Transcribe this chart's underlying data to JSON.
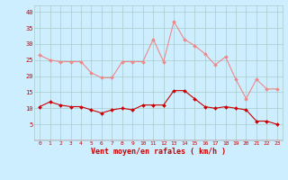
{
  "hours": [
    0,
    1,
    2,
    3,
    4,
    5,
    6,
    7,
    8,
    9,
    10,
    11,
    12,
    13,
    14,
    15,
    16,
    17,
    18,
    19,
    20,
    21,
    22,
    23
  ],
  "wind_avg": [
    10.5,
    12,
    11,
    10.5,
    10.5,
    9.5,
    8.5,
    9.5,
    10,
    9.5,
    11,
    11,
    11,
    15.5,
    15.5,
    13,
    10.5,
    10,
    10.5,
    10,
    9.5,
    6,
    6,
    5
  ],
  "wind_gust": [
    26.5,
    25,
    24.5,
    24.5,
    24.5,
    21,
    19.5,
    19.5,
    24.5,
    24.5,
    24.5,
    31.5,
    24.5,
    37,
    31.5,
    29.5,
    27,
    23.5,
    26,
    19,
    13,
    19,
    16,
    16
  ],
  "xlabel": "Vent moyen/en rafales ( km/h )",
  "ylim": [
    0,
    42
  ],
  "yticks": [
    5,
    10,
    15,
    20,
    25,
    30,
    35,
    40
  ],
  "bg_color": "#cceeff",
  "grid_color": "#aacccc",
  "line_avg_color": "#cc0000",
  "line_gust_color": "#ee8888",
  "arrow_color": "#cc0000",
  "xlabel_color": "#cc0000",
  "tick_color": "#cc0000"
}
